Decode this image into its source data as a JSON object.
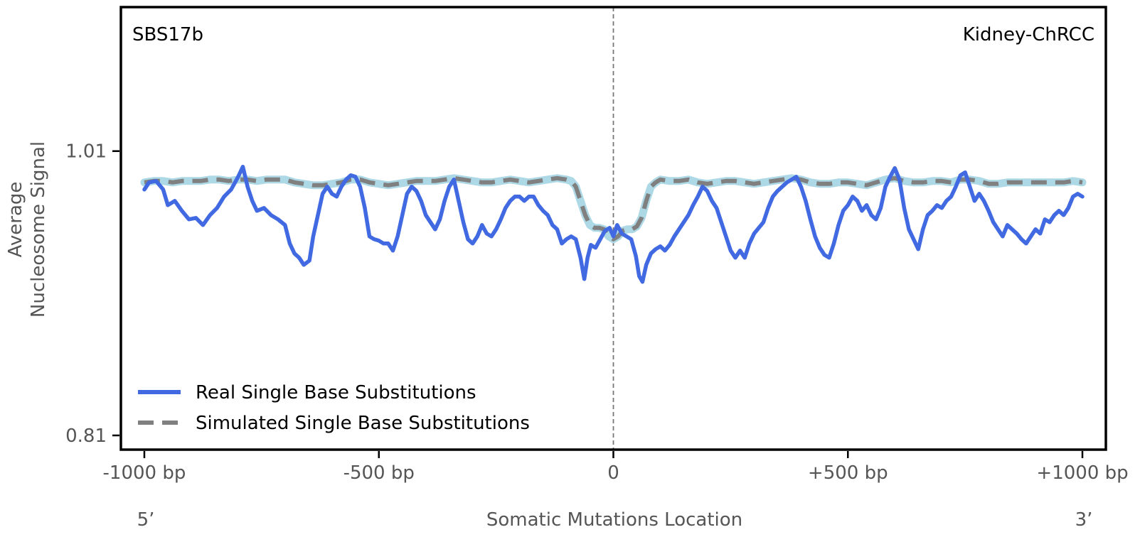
{
  "chart_data": {
    "type": "line",
    "signature_label": "SBS17b",
    "tissue_label": "Kidney-ChRCC",
    "xlabel": "Somatic Mutations Location",
    "ylabel_line1": "Average",
    "ylabel_line2": "Nucleosome Signal",
    "xlim": [
      -1050,
      1050
    ],
    "ylim": [
      0.8,
      1.1113
    ],
    "x_ticks": [
      -1000,
      -500,
      0,
      500,
      1000
    ],
    "x_tick_labels": [
      "-1000 bp",
      "-500 bp",
      "0",
      "+500 bp",
      "+1000 bp"
    ],
    "y_ticks": [
      0.81,
      1.01
    ],
    "y_tick_labels": [
      "0.81",
      "1.01"
    ],
    "end_label_left": "5’",
    "end_label_right": "3’",
    "center_line_x": 0,
    "legend_position": "lower-left",
    "series": [
      {
        "name": "Real Single Base Substitutions",
        "style": "solid",
        "color": "#4169e1",
        "points": [
          [
            -1000,
            0.983
          ],
          [
            -990,
            0.988
          ],
          [
            -975,
            0.989
          ],
          [
            -960,
            0.983
          ],
          [
            -950,
            0.972
          ],
          [
            -935,
            0.975
          ],
          [
            -920,
            0.968
          ],
          [
            -905,
            0.962
          ],
          [
            -890,
            0.963
          ],
          [
            -875,
            0.958
          ],
          [
            -860,
            0.965
          ],
          [
            -845,
            0.97
          ],
          [
            -830,
            0.978
          ],
          [
            -815,
            0.983
          ],
          [
            -800,
            0.992
          ],
          [
            -790,
            0.999
          ],
          [
            -780,
            0.985
          ],
          [
            -770,
            0.975
          ],
          [
            -760,
            0.968
          ],
          [
            -745,
            0.97
          ],
          [
            -730,
            0.965
          ],
          [
            -715,
            0.962
          ],
          [
            -700,
            0.958
          ],
          [
            -690,
            0.945
          ],
          [
            -680,
            0.938
          ],
          [
            -670,
            0.935
          ],
          [
            -660,
            0.93
          ],
          [
            -648,
            0.933
          ],
          [
            -640,
            0.95
          ],
          [
            -630,
            0.965
          ],
          [
            -620,
            0.98
          ],
          [
            -610,
            0.985
          ],
          [
            -600,
            0.98
          ],
          [
            -590,
            0.978
          ],
          [
            -580,
            0.985
          ],
          [
            -570,
            0.99
          ],
          [
            -560,
            0.993
          ],
          [
            -550,
            0.992
          ],
          [
            -540,
            0.985
          ],
          [
            -530,
            0.97
          ],
          [
            -520,
            0.95
          ],
          [
            -510,
            0.948
          ],
          [
            -500,
            0.947
          ],
          [
            -490,
            0.945
          ],
          [
            -480,
            0.945
          ],
          [
            -470,
            0.94
          ],
          [
            -460,
            0.95
          ],
          [
            -450,
            0.965
          ],
          [
            -440,
            0.98
          ],
          [
            -430,
            0.985
          ],
          [
            -420,
            0.982
          ],
          [
            -410,
            0.975
          ],
          [
            -400,
            0.965
          ],
          [
            -390,
            0.96
          ],
          [
            -380,
            0.955
          ],
          [
            -370,
            0.962
          ],
          [
            -360,
            0.975
          ],
          [
            -350,
            0.985
          ],
          [
            -340,
            0.99
          ],
          [
            -330,
            0.975
          ],
          [
            -320,
            0.96
          ],
          [
            -310,
            0.948
          ],
          [
            -300,
            0.945
          ],
          [
            -290,
            0.95
          ],
          [
            -280,
            0.958
          ],
          [
            -270,
            0.952
          ],
          [
            -260,
            0.95
          ],
          [
            -250,
            0.955
          ],
          [
            -240,
            0.962
          ],
          [
            -230,
            0.97
          ],
          [
            -220,
            0.975
          ],
          [
            -210,
            0.978
          ],
          [
            -200,
            0.978
          ],
          [
            -190,
            0.975
          ],
          [
            -180,
            0.978
          ],
          [
            -170,
            0.978
          ],
          [
            -160,
            0.972
          ],
          [
            -150,
            0.968
          ],
          [
            -140,
            0.965
          ],
          [
            -130,
            0.958
          ],
          [
            -120,
            0.955
          ],
          [
            -110,
            0.945
          ],
          [
            -100,
            0.948
          ],
          [
            -90,
            0.95
          ],
          [
            -80,
            0.948
          ],
          [
            -70,
            0.935
          ],
          [
            -62,
            0.92
          ],
          [
            -55,
            0.935
          ],
          [
            -48,
            0.944
          ],
          [
            -38,
            0.942
          ],
          [
            -28,
            0.948
          ],
          [
            -18,
            0.954
          ],
          [
            -8,
            0.956
          ],
          [
            0,
            0.95
          ],
          [
            8,
            0.958
          ],
          [
            18,
            0.952
          ],
          [
            28,
            0.95
          ],
          [
            38,
            0.948
          ],
          [
            48,
            0.936
          ],
          [
            55,
            0.922
          ],
          [
            62,
            0.918
          ],
          [
            70,
            0.93
          ],
          [
            80,
            0.938
          ],
          [
            90,
            0.941
          ],
          [
            100,
            0.943
          ],
          [
            110,
            0.94
          ],
          [
            120,
            0.944
          ],
          [
            130,
            0.95
          ],
          [
            140,
            0.955
          ],
          [
            150,
            0.96
          ],
          [
            160,
            0.965
          ],
          [
            170,
            0.972
          ],
          [
            180,
            0.978
          ],
          [
            190,
            0.985
          ],
          [
            200,
            0.982
          ],
          [
            210,
            0.975
          ],
          [
            220,
            0.97
          ],
          [
            230,
            0.96
          ],
          [
            240,
            0.95
          ],
          [
            250,
            0.94
          ],
          [
            260,
            0.935
          ],
          [
            270,
            0.94
          ],
          [
            280,
            0.935
          ],
          [
            290,
            0.945
          ],
          [
            300,
            0.952
          ],
          [
            310,
            0.956
          ],
          [
            320,
            0.96
          ],
          [
            330,
            0.97
          ],
          [
            340,
            0.978
          ],
          [
            350,
            0.982
          ],
          [
            360,
            0.985
          ],
          [
            370,
            0.988
          ],
          [
            380,
            0.99
          ],
          [
            390,
            0.992
          ],
          [
            400,
            0.985
          ],
          [
            410,
            0.975
          ],
          [
            420,
            0.962
          ],
          [
            430,
            0.95
          ],
          [
            440,
            0.942
          ],
          [
            450,
            0.937
          ],
          [
            460,
            0.935
          ],
          [
            470,
            0.945
          ],
          [
            480,
            0.958
          ],
          [
            490,
            0.968
          ],
          [
            500,
            0.972
          ],
          [
            510,
            0.978
          ],
          [
            520,
            0.975
          ],
          [
            530,
            0.968
          ],
          [
            540,
            0.972
          ],
          [
            550,
            0.965
          ],
          [
            560,
            0.962
          ],
          [
            570,
            0.97
          ],
          [
            580,
            0.985
          ],
          [
            590,
            0.992
          ],
          [
            600,
            0.998
          ],
          [
            610,
            0.99
          ],
          [
            620,
            0.97
          ],
          [
            630,
            0.955
          ],
          [
            640,
            0.948
          ],
          [
            650,
            0.941
          ],
          [
            660,
            0.955
          ],
          [
            670,
            0.965
          ],
          [
            680,
            0.968
          ],
          [
            690,
            0.972
          ],
          [
            700,
            0.97
          ],
          [
            710,
            0.975
          ],
          [
            720,
            0.978
          ],
          [
            730,
            0.985
          ],
          [
            740,
            0.993
          ],
          [
            750,
            0.995
          ],
          [
            760,
            0.985
          ],
          [
            770,
            0.975
          ],
          [
            780,
            0.98
          ],
          [
            790,
            0.975
          ],
          [
            800,
            0.968
          ],
          [
            810,
            0.96
          ],
          [
            820,
            0.955
          ],
          [
            830,
            0.95
          ],
          [
            840,
            0.958
          ],
          [
            850,
            0.955
          ],
          [
            860,
            0.952
          ],
          [
            870,
            0.948
          ],
          [
            880,
            0.945
          ],
          [
            890,
            0.95
          ],
          [
            900,
            0.955
          ],
          [
            910,
            0.952
          ],
          [
            920,
            0.962
          ],
          [
            930,
            0.96
          ],
          [
            940,
            0.965
          ],
          [
            950,
            0.968
          ],
          [
            960,
            0.965
          ],
          [
            970,
            0.97
          ],
          [
            980,
            0.978
          ],
          [
            990,
            0.98
          ],
          [
            1000,
            0.978
          ]
        ]
      },
      {
        "name": "Simulated Single Base Substitutions",
        "style": "dashed",
        "color": "#808080",
        "band_color": "#add8e6",
        "points": [
          [
            -1000,
            0.988
          ],
          [
            -980,
            0.989
          ],
          [
            -960,
            0.989
          ],
          [
            -940,
            0.988
          ],
          [
            -920,
            0.989
          ],
          [
            -900,
            0.989
          ],
          [
            -880,
            0.989
          ],
          [
            -860,
            0.99
          ],
          [
            -840,
            0.99
          ],
          [
            -820,
            0.989
          ],
          [
            -800,
            0.99
          ],
          [
            -780,
            0.99
          ],
          [
            -760,
            0.989
          ],
          [
            -740,
            0.99
          ],
          [
            -720,
            0.99
          ],
          [
            -700,
            0.99
          ],
          [
            -680,
            0.988
          ],
          [
            -660,
            0.987
          ],
          [
            -640,
            0.986
          ],
          [
            -620,
            0.986
          ],
          [
            -600,
            0.987
          ],
          [
            -580,
            0.988
          ],
          [
            -560,
            0.99
          ],
          [
            -540,
            0.99
          ],
          [
            -520,
            0.988
          ],
          [
            -500,
            0.987
          ],
          [
            -480,
            0.986
          ],
          [
            -460,
            0.987
          ],
          [
            -440,
            0.988
          ],
          [
            -420,
            0.989
          ],
          [
            -400,
            0.989
          ],
          [
            -380,
            0.989
          ],
          [
            -360,
            0.99
          ],
          [
            -340,
            0.991
          ],
          [
            -320,
            0.99
          ],
          [
            -300,
            0.989
          ],
          [
            -280,
            0.988
          ],
          [
            -260,
            0.988
          ],
          [
            -240,
            0.989
          ],
          [
            -220,
            0.99
          ],
          [
            -200,
            0.989
          ],
          [
            -180,
            0.988
          ],
          [
            -160,
            0.989
          ],
          [
            -140,
            0.99
          ],
          [
            -120,
            0.991
          ],
          [
            -100,
            0.99
          ],
          [
            -90,
            0.989
          ],
          [
            -80,
            0.985
          ],
          [
            -70,
            0.975
          ],
          [
            -60,
            0.965
          ],
          [
            -50,
            0.958
          ],
          [
            -40,
            0.956
          ],
          [
            -30,
            0.956
          ],
          [
            -20,
            0.955
          ],
          [
            -10,
            0.95
          ],
          [
            0,
            0.948
          ],
          [
            10,
            0.95
          ],
          [
            20,
            0.954
          ],
          [
            30,
            0.955
          ],
          [
            40,
            0.955
          ],
          [
            50,
            0.957
          ],
          [
            60,
            0.963
          ],
          [
            70,
            0.975
          ],
          [
            80,
            0.985
          ],
          [
            90,
            0.988
          ],
          [
            100,
            0.99
          ],
          [
            120,
            0.989
          ],
          [
            140,
            0.989
          ],
          [
            160,
            0.99
          ],
          [
            180,
            0.988
          ],
          [
            200,
            0.987
          ],
          [
            220,
            0.988
          ],
          [
            240,
            0.989
          ],
          [
            260,
            0.989
          ],
          [
            280,
            0.988
          ],
          [
            300,
            0.987
          ],
          [
            320,
            0.988
          ],
          [
            340,
            0.989
          ],
          [
            360,
            0.99
          ],
          [
            380,
            0.991
          ],
          [
            400,
            0.99
          ],
          [
            420,
            0.988
          ],
          [
            440,
            0.987
          ],
          [
            460,
            0.987
          ],
          [
            480,
            0.988
          ],
          [
            500,
            0.988
          ],
          [
            520,
            0.987
          ],
          [
            540,
            0.986
          ],
          [
            560,
            0.988
          ],
          [
            580,
            0.99
          ],
          [
            600,
            0.991
          ],
          [
            620,
            0.989
          ],
          [
            640,
            0.988
          ],
          [
            660,
            0.988
          ],
          [
            680,
            0.989
          ],
          [
            700,
            0.989
          ],
          [
            720,
            0.988
          ],
          [
            740,
            0.99
          ],
          [
            760,
            0.99
          ],
          [
            780,
            0.989
          ],
          [
            800,
            0.987
          ],
          [
            820,
            0.987
          ],
          [
            840,
            0.988
          ],
          [
            860,
            0.988
          ],
          [
            880,
            0.988
          ],
          [
            900,
            0.988
          ],
          [
            920,
            0.988
          ],
          [
            940,
            0.988
          ],
          [
            960,
            0.988
          ],
          [
            980,
            0.989
          ],
          [
            1000,
            0.988
          ]
        ]
      }
    ]
  }
}
